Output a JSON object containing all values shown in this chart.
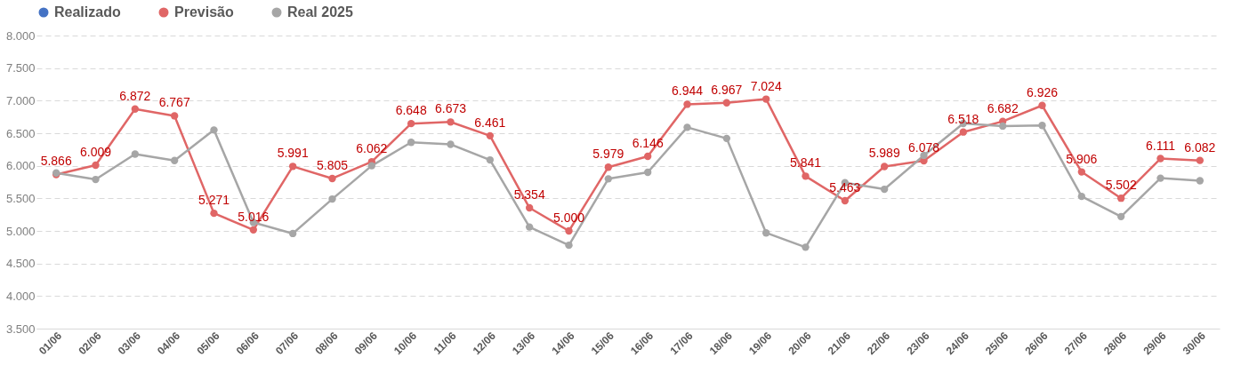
{
  "chart_data": {
    "type": "line",
    "categories": [
      "01/06",
      "02/06",
      "03/06",
      "04/06",
      "05/06",
      "06/06",
      "07/06",
      "08/06",
      "09/06",
      "10/06",
      "11/06",
      "12/06",
      "13/06",
      "14/06",
      "15/06",
      "16/06",
      "17/06",
      "18/06",
      "19/06",
      "20/06",
      "21/06",
      "22/06",
      "23/06",
      "24/06",
      "25/06",
      "26/06",
      "27/06",
      "28/06",
      "29/06",
      "30/06"
    ],
    "series": [
      {
        "name": "Realizado",
        "color": "#4472c4",
        "values": [
          null,
          null,
          null,
          null,
          null,
          null,
          null,
          null,
          null,
          null,
          null,
          null,
          null,
          null,
          null,
          null,
          null,
          null,
          null,
          null,
          null,
          null,
          null,
          null,
          null,
          null,
          null,
          null,
          null,
          null
        ]
      },
      {
        "name": "Previsão",
        "color": "#e06666",
        "values": [
          5866,
          6009,
          6872,
          6767,
          5271,
          5016,
          5991,
          5805,
          6062,
          6648,
          6673,
          6461,
          5354,
          5000,
          5979,
          6146,
          6944,
          6967,
          7024,
          5841,
          5463,
          5989,
          6078,
          6518,
          6682,
          6926,
          5906,
          5502,
          6111,
          6082
        ],
        "value_labels": [
          "5.866",
          "6.009",
          "6.872",
          "6.767",
          "5.271",
          "5.016",
          "5.991",
          "5.805",
          "6.062",
          "6.648",
          "6.673",
          "6.461",
          "5.354",
          "5.000",
          "5.979",
          "6.146",
          "6.944",
          "6.967",
          "7.024",
          "5.841",
          "5.463",
          "5.989",
          "6.078",
          "6.518",
          "6.682",
          "6.926",
          "5.906",
          "5.502",
          "6.111",
          "6.082"
        ]
      },
      {
        "name": "Real 2025",
        "color": "#a6a6a6",
        "values": [
          5890,
          5790,
          6180,
          6080,
          6550,
          5130,
          4960,
          5490,
          6000,
          6360,
          6330,
          6090,
          5060,
          4780,
          5800,
          5900,
          6590,
          6420,
          4970,
          4750,
          5740,
          5640,
          6160,
          6650,
          6610,
          6620,
          5530,
          5220,
          5810,
          5770
        ]
      }
    ],
    "ylim": [
      3500,
      8000
    ],
    "yticks": [
      {
        "value": 3500,
        "label": "3.500"
      },
      {
        "value": 4000,
        "label": "4.000"
      },
      {
        "value": 4500,
        "label": "4.500"
      },
      {
        "value": 5000,
        "label": "5.000"
      },
      {
        "value": 5500,
        "label": "5.500"
      },
      {
        "value": 6000,
        "label": "6.000"
      },
      {
        "value": 6500,
        "label": "6.500"
      },
      {
        "value": 7000,
        "label": "7.000"
      },
      {
        "value": 7500,
        "label": "7.500"
      },
      {
        "value": 8000,
        "label": "8.000"
      }
    ],
    "grid": "y",
    "legend": "top",
    "marker": "circle",
    "line_style": "solid"
  }
}
